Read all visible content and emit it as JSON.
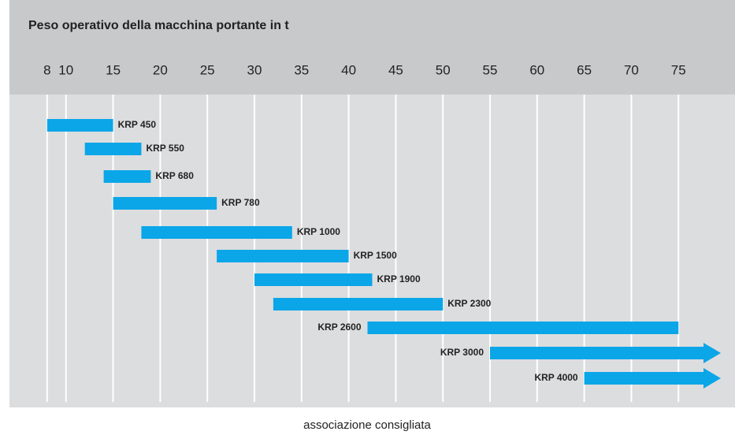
{
  "chart_data": {
    "type": "range_bar",
    "title": "Peso operativo della macchina portante in t",
    "xlabel": "associazione consigliata",
    "xlim": [
      4,
      81
    ],
    "xticks": [
      8,
      10,
      15,
      20,
      25,
      30,
      35,
      40,
      45,
      50,
      55,
      60,
      65,
      70,
      75
    ],
    "grid": true,
    "color": "#0aa6e8",
    "categories": [
      "KRP 450",
      "KRP 550",
      "KRP 680",
      "KRP 780",
      "KRP 1000",
      "KRP 1500",
      "KRP 1900",
      "KRP 2300",
      "KRP 2600",
      "KRP 3000",
      "KRP 4000"
    ],
    "start": [
      8,
      12,
      14,
      15,
      18,
      26,
      30,
      32,
      42,
      55,
      65
    ],
    "end": [
      15,
      18,
      19,
      26,
      34,
      40,
      42.5,
      50,
      75,
      null,
      null
    ]
  }
}
